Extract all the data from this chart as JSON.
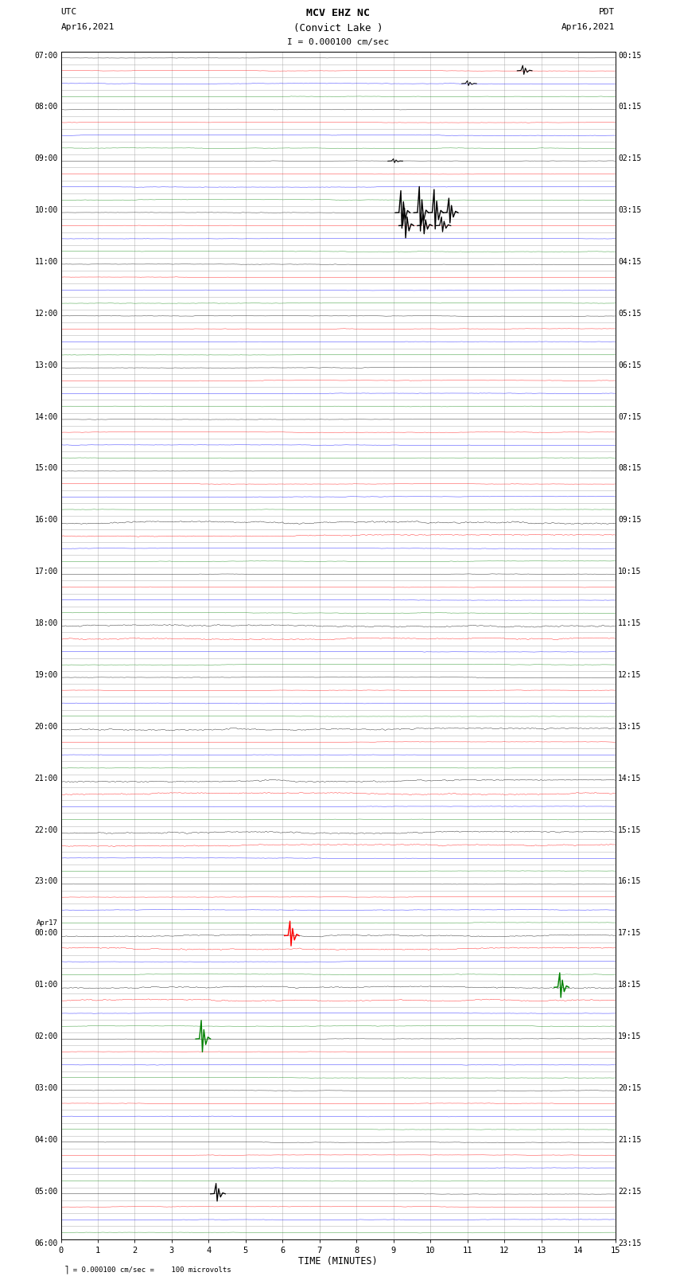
{
  "title_line1": "MCV EHZ NC",
  "title_line2": "(Convict Lake )",
  "scale_label": "I = 0.000100 cm/sec",
  "left_label_top": "UTC",
  "left_label_date": "Apr16,2021",
  "right_label_top": "PDT",
  "right_label_date": "Apr16,2021",
  "bottom_note": "= 0.000100 cm/sec =    100 microvolts",
  "xlabel": "TIME (MINUTES)",
  "x_ticks": [
    0,
    1,
    2,
    3,
    4,
    5,
    6,
    7,
    8,
    9,
    10,
    11,
    12,
    13,
    14,
    15
  ],
  "num_rows": 92,
  "bg_color": "white",
  "grid_color": "#999999",
  "fig_width": 8.5,
  "fig_height": 16.13,
  "noise_scale": 0.018,
  "left_labels": [
    [
      "07:00",
      0
    ],
    [
      "",
      1
    ],
    [
      "",
      2
    ],
    [
      "",
      3
    ],
    [
      "08:00",
      4
    ],
    [
      "",
      5
    ],
    [
      "",
      6
    ],
    [
      "",
      7
    ],
    [
      "09:00",
      8
    ],
    [
      "",
      9
    ],
    [
      "",
      10
    ],
    [
      "",
      11
    ],
    [
      "10:00",
      12
    ],
    [
      "",
      13
    ],
    [
      "",
      14
    ],
    [
      "",
      15
    ],
    [
      "11:00",
      16
    ],
    [
      "",
      17
    ],
    [
      "",
      18
    ],
    [
      "",
      19
    ],
    [
      "12:00",
      20
    ],
    [
      "",
      21
    ],
    [
      "",
      22
    ],
    [
      "",
      23
    ],
    [
      "13:00",
      24
    ],
    [
      "",
      25
    ],
    [
      "",
      26
    ],
    [
      "",
      27
    ],
    [
      "14:00",
      28
    ],
    [
      "",
      29
    ],
    [
      "",
      30
    ],
    [
      "",
      31
    ],
    [
      "15:00",
      32
    ],
    [
      "",
      33
    ],
    [
      "",
      34
    ],
    [
      "",
      35
    ],
    [
      "16:00",
      36
    ],
    [
      "",
      37
    ],
    [
      "",
      38
    ],
    [
      "",
      39
    ],
    [
      "17:00",
      40
    ],
    [
      "",
      41
    ],
    [
      "",
      42
    ],
    [
      "",
      43
    ],
    [
      "18:00",
      44
    ],
    [
      "",
      45
    ],
    [
      "",
      46
    ],
    [
      "",
      47
    ],
    [
      "19:00",
      48
    ],
    [
      "",
      49
    ],
    [
      "",
      50
    ],
    [
      "",
      51
    ],
    [
      "20:00",
      52
    ],
    [
      "",
      53
    ],
    [
      "",
      54
    ],
    [
      "",
      55
    ],
    [
      "21:00",
      56
    ],
    [
      "",
      57
    ],
    [
      "",
      58
    ],
    [
      "",
      59
    ],
    [
      "22:00",
      60
    ],
    [
      "",
      61
    ],
    [
      "",
      62
    ],
    [
      "",
      63
    ],
    [
      "23:00",
      64
    ],
    [
      "",
      65
    ],
    [
      "",
      66
    ],
    [
      "",
      67
    ],
    [
      "Apr17",
      68
    ],
    [
      "00:00",
      68
    ],
    [
      "",
      69
    ],
    [
      "",
      70
    ],
    [
      "",
      71
    ],
    [
      "01:00",
      72
    ],
    [
      "",
      73
    ],
    [
      "",
      74
    ],
    [
      "",
      75
    ],
    [
      "02:00",
      76
    ],
    [
      "",
      77
    ],
    [
      "",
      78
    ],
    [
      "",
      79
    ],
    [
      "03:00",
      80
    ],
    [
      "",
      81
    ],
    [
      "",
      82
    ],
    [
      "",
      83
    ],
    [
      "04:00",
      84
    ],
    [
      "",
      85
    ],
    [
      "",
      86
    ],
    [
      "",
      87
    ],
    [
      "05:00",
      88
    ],
    [
      "",
      89
    ],
    [
      "",
      90
    ],
    [
      "",
      91
    ],
    [
      "06:00",
      92
    ]
  ],
  "right_labels": [
    [
      "00:15",
      0
    ],
    [
      "",
      1
    ],
    [
      "",
      2
    ],
    [
      "",
      3
    ],
    [
      "01:15",
      4
    ],
    [
      "",
      5
    ],
    [
      "",
      6
    ],
    [
      "",
      7
    ],
    [
      "02:15",
      8
    ],
    [
      "",
      9
    ],
    [
      "",
      10
    ],
    [
      "",
      11
    ],
    [
      "03:15",
      12
    ],
    [
      "",
      13
    ],
    [
      "",
      14
    ],
    [
      "",
      15
    ],
    [
      "04:15",
      16
    ],
    [
      "",
      17
    ],
    [
      "",
      18
    ],
    [
      "",
      19
    ],
    [
      "05:15",
      20
    ],
    [
      "",
      21
    ],
    [
      "",
      22
    ],
    [
      "",
      23
    ],
    [
      "06:15",
      24
    ],
    [
      "",
      25
    ],
    [
      "",
      26
    ],
    [
      "",
      27
    ],
    [
      "07:15",
      28
    ],
    [
      "",
      29
    ],
    [
      "",
      30
    ],
    [
      "",
      31
    ],
    [
      "08:15",
      32
    ],
    [
      "",
      33
    ],
    [
      "",
      34
    ],
    [
      "",
      35
    ],
    [
      "09:15",
      36
    ],
    [
      "",
      37
    ],
    [
      "",
      38
    ],
    [
      "",
      39
    ],
    [
      "10:15",
      40
    ],
    [
      "",
      41
    ],
    [
      "",
      42
    ],
    [
      "",
      43
    ],
    [
      "11:15",
      44
    ],
    [
      "",
      45
    ],
    [
      "",
      46
    ],
    [
      "",
      47
    ],
    [
      "12:15",
      48
    ],
    [
      "",
      49
    ],
    [
      "",
      50
    ],
    [
      "",
      51
    ],
    [
      "13:15",
      52
    ],
    [
      "",
      53
    ],
    [
      "",
      54
    ],
    [
      "",
      55
    ],
    [
      "14:15",
      56
    ],
    [
      "",
      57
    ],
    [
      "",
      58
    ],
    [
      "",
      59
    ],
    [
      "15:15",
      60
    ],
    [
      "",
      61
    ],
    [
      "",
      62
    ],
    [
      "",
      63
    ],
    [
      "16:15",
      64
    ],
    [
      "",
      65
    ],
    [
      "",
      66
    ],
    [
      "",
      67
    ],
    [
      "17:15",
      68
    ],
    [
      "",
      69
    ],
    [
      "",
      70
    ],
    [
      "",
      71
    ],
    [
      "18:15",
      72
    ],
    [
      "",
      73
    ],
    [
      "",
      74
    ],
    [
      "",
      75
    ],
    [
      "19:15",
      76
    ],
    [
      "",
      77
    ],
    [
      "",
      78
    ],
    [
      "",
      79
    ],
    [
      "20:15",
      80
    ],
    [
      "",
      81
    ],
    [
      "",
      82
    ],
    [
      "",
      83
    ],
    [
      "21:15",
      84
    ],
    [
      "",
      85
    ],
    [
      "",
      86
    ],
    [
      "",
      87
    ],
    [
      "22:15",
      88
    ],
    [
      "",
      89
    ],
    [
      "",
      90
    ],
    [
      "",
      91
    ],
    [
      "23:15",
      92
    ]
  ],
  "row_colors": [
    "black",
    "red",
    "blue",
    "green"
  ],
  "special_spikes": [
    {
      "row": 1,
      "x": 12.5,
      "amp": 0.9,
      "color": "black",
      "lw": 0.8
    },
    {
      "row": 2,
      "x": 11.0,
      "amp": 0.5,
      "color": "black",
      "lw": 0.7
    },
    {
      "row": 8,
      "x": 9.0,
      "amp": 0.4,
      "color": "black",
      "lw": 0.7
    },
    {
      "row": 12,
      "x": 9.2,
      "amp": 3.8,
      "color": "black",
      "lw": 1.0
    },
    {
      "row": 12,
      "x": 9.7,
      "amp": 4.5,
      "color": "black",
      "lw": 1.0
    },
    {
      "row": 12,
      "x": 10.1,
      "amp": 4.0,
      "color": "black",
      "lw": 1.0
    },
    {
      "row": 12,
      "x": 10.5,
      "amp": 2.5,
      "color": "black",
      "lw": 1.0
    },
    {
      "row": 13,
      "x": 9.3,
      "amp": 3.0,
      "color": "black",
      "lw": 1.0
    },
    {
      "row": 13,
      "x": 9.8,
      "amp": 2.0,
      "color": "black",
      "lw": 1.0
    },
    {
      "row": 13,
      "x": 10.3,
      "amp": 1.5,
      "color": "black",
      "lw": 0.9
    },
    {
      "row": 68,
      "x": 6.2,
      "amp": 2.5,
      "color": "red",
      "lw": 1.0
    },
    {
      "row": 72,
      "x": 13.5,
      "amp": 2.5,
      "color": "green",
      "lw": 1.0
    },
    {
      "row": 76,
      "x": 3.8,
      "amp": 3.2,
      "color": "green",
      "lw": 1.0
    },
    {
      "row": 88,
      "x": 4.2,
      "amp": 1.8,
      "color": "black",
      "lw": 0.9
    }
  ],
  "high_noise_rows": [
    {
      "row": 36,
      "scale": 0.08,
      "color": "red"
    },
    {
      "row": 37,
      "scale": 0.06,
      "color": "black"
    },
    {
      "row": 44,
      "scale": 0.07,
      "color": "black"
    },
    {
      "row": 45,
      "scale": 0.06,
      "color": "red"
    },
    {
      "row": 52,
      "scale": 0.07,
      "color": "red"
    },
    {
      "row": 56,
      "scale": 0.07,
      "color": "black"
    },
    {
      "row": 57,
      "scale": 0.06,
      "color": "red"
    },
    {
      "row": 60,
      "scale": 0.07,
      "color": "black"
    },
    {
      "row": 61,
      "scale": 0.06,
      "color": "red"
    },
    {
      "row": 68,
      "scale": 0.06,
      "color": "black"
    },
    {
      "row": 69,
      "scale": 0.07,
      "color": "red"
    },
    {
      "row": 72,
      "scale": 0.06,
      "color": "black"
    },
    {
      "row": 73,
      "scale": 0.06,
      "color": "red"
    }
  ]
}
